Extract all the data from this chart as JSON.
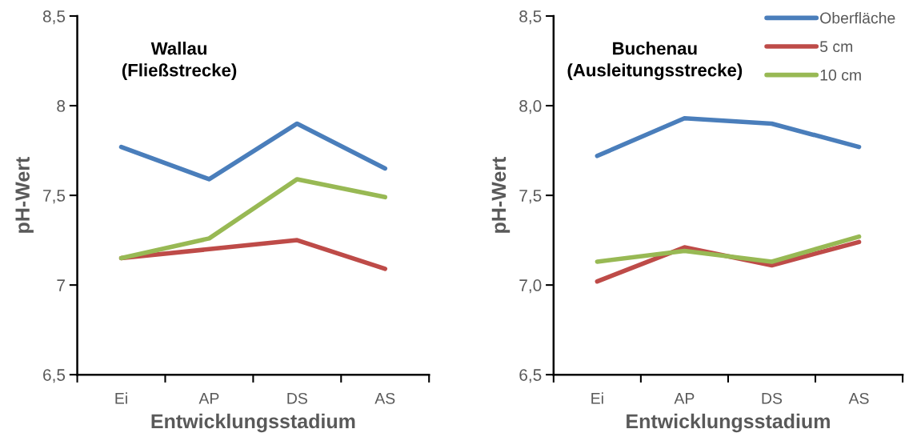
{
  "chart_data": [
    {
      "type": "line",
      "title": "Wallau\n(Fließstrecke)",
      "xlabel": "Entwicklungsstadium",
      "ylabel": "pH-Wert",
      "categories": [
        "Ei",
        "AP",
        "DS",
        "AS"
      ],
      "series": [
        {
          "color": "#4a7ebb",
          "values": [
            7.77,
            7.59,
            7.9,
            7.65
          ]
        },
        {
          "color": "#be4b48",
          "values": [
            7.15,
            7.2,
            7.25,
            7.09
          ]
        },
        {
          "color": "#98b954",
          "values": [
            7.15,
            7.26,
            7.59,
            7.49
          ]
        }
      ],
      "ylim": [
        6.5,
        8.5
      ],
      "yticks": [
        {
          "value": 6.5,
          "label": "6,5"
        },
        7,
        {
          "value": 7.5,
          "label": "7,5"
        },
        8,
        {
          "value": 8.5,
          "label": "8,5"
        }
      ],
      "grid": false,
      "legend": false,
      "marker": "none",
      "line_style": "solid"
    },
    {
      "type": "line",
      "title": "Buchenau\n(Ausleitungsstrecke)",
      "xlabel": "Entwicklungsstadium",
      "ylabel": "pH-Wert",
      "categories": [
        "Ei",
        "AP",
        "DS",
        "AS"
      ],
      "series": [
        {
          "name": "Oberfläche",
          "color": "#4a7ebb",
          "values": [
            7.72,
            7.93,
            7.9,
            7.77
          ]
        },
        {
          "name": "5 cm",
          "color": "#be4b48",
          "values": [
            7.02,
            7.21,
            7.11,
            7.24
          ]
        },
        {
          "name": "10 cm",
          "color": "#98b954",
          "values": [
            7.13,
            7.19,
            7.13,
            7.27
          ]
        }
      ],
      "ylim": [
        6.5,
        8.5
      ],
      "yticks": [
        {
          "value": 6.5,
          "label": "6,5"
        },
        {
          "value": 7.0,
          "label": "7,0"
        },
        {
          "value": 7.5,
          "label": "7,5"
        },
        {
          "value": 8.0,
          "label": "8,0"
        },
        {
          "value": 8.5,
          "label": "8,5"
        }
      ],
      "grid": false,
      "legend": "top right",
      "marker": "none",
      "line_style": "solid"
    }
  ]
}
